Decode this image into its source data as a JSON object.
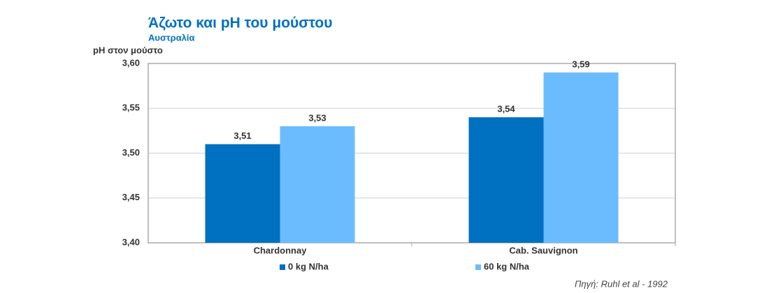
{
  "chart_data": {
    "type": "bar",
    "title": "Άζωτο και pH του μούστου",
    "subtitle": "Αυστραλία",
    "y_label": "pH στον μούστο",
    "source": "Πηγή:  Ruhl et al - 1992",
    "categories": [
      "Chardonnay",
      "Cab. Sauvignon"
    ],
    "series": [
      {
        "name": "0 kg N/ha",
        "color": "#0070c0",
        "values": [
          3.51,
          3.54
        ],
        "value_labels": [
          "3,51",
          "3,54"
        ]
      },
      {
        "name": "60 kg N/ha",
        "color": "#6bbcff",
        "values": [
          3.53,
          3.59
        ],
        "value_labels": [
          "3,53",
          "3,59"
        ]
      }
    ],
    "ylim": [
      3.4,
      3.6
    ],
    "yticks": [
      {
        "value": 3.4,
        "label": "3,40"
      },
      {
        "value": 3.45,
        "label": "3,45"
      },
      {
        "value": 3.5,
        "label": "3,50"
      },
      {
        "value": 3.55,
        "label": "3,55"
      },
      {
        "value": 3.6,
        "label": "3,60"
      }
    ],
    "grid": true,
    "legend": "bottom"
  }
}
